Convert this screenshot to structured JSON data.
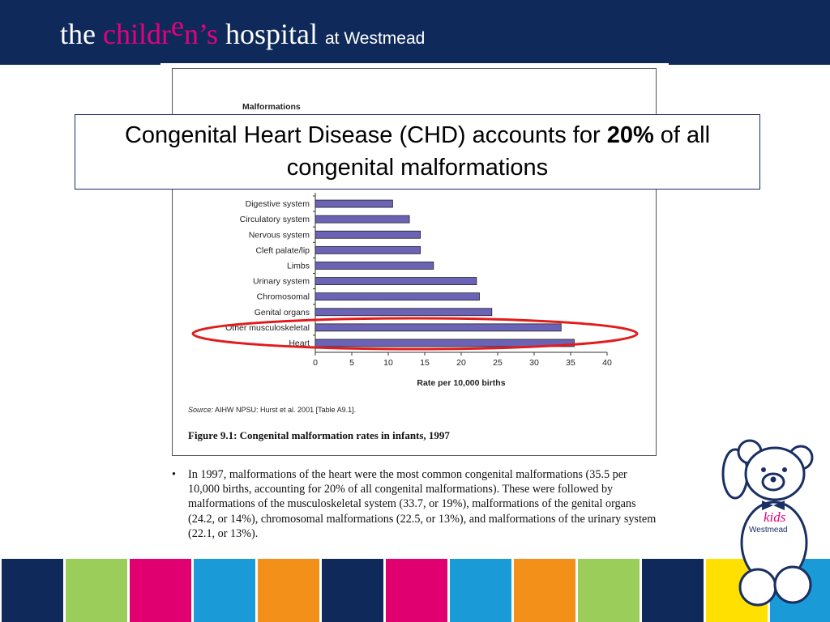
{
  "header": {
    "logo_part1": "the ",
    "logo_part2": "childr",
    "logo_part3": "e",
    "logo_part4": "n’s",
    "logo_part5": " hospital ",
    "logo_part6": "at Westmead"
  },
  "callout": {
    "text_before": "Congenital Heart Disease (CHD) accounts for ",
    "text_bold": "20%",
    "text_after": " of all congenital malformations"
  },
  "chart_data": {
    "type": "bar",
    "orientation": "horizontal",
    "title": "Malformations",
    "xlabel": "Rate per 10,000 births",
    "xlim": [
      0,
      40
    ],
    "xticks": [
      0,
      5,
      10,
      15,
      20,
      25,
      30,
      35,
      40
    ],
    "categories": [
      "Digestive system",
      "Circulatory system",
      "Nervous system",
      "Cleft palate/lip",
      "Limbs",
      "Urinary system",
      "Chromosomal",
      "Genital organs",
      "Other musculoskeletal",
      "Heart"
    ],
    "values": [
      10.6,
      12.9,
      14.4,
      14.4,
      16.2,
      22.1,
      22.5,
      24.2,
      33.7,
      35.5
    ],
    "bar_color": "#6b63b5"
  },
  "figure": {
    "source_label": "Source:",
    "source_text": " AIHW NPSU: Hurst et al. 2001 [Table A9.1].",
    "caption": "Figure 9.1: Congenital malformation rates in infants, 1997"
  },
  "bullet": {
    "symbol": "•",
    "text": "In 1997, malformations of the heart were the most common congenital malformations (35.5 per 10,000 births, accounting for 20% of all congenital malformations). These were followed by malformations of the musculoskeletal system (33.7, or 19%), malformations of the genital organs (24.2, or 14%), chromosomal malformations (22.5, or 13%), and malformations of the urinary system (22.1, or 13%)."
  },
  "mascot": {
    "label1": "kids",
    "label2": "Westmead"
  },
  "colors": {
    "header": "#0f2a5a",
    "pink": "#e6007e",
    "strip": [
      "#0f2a5a",
      "#9acd5a",
      "#e0006f",
      "#1a9bd7",
      "#f39019",
      "#0f2a5a",
      "#e0006f",
      "#1a9bd7",
      "#f39019",
      "#9acd5a",
      "#0f2a5a",
      "#ffe000",
      "#1a9bd7"
    ],
    "oval": "#e21b1b"
  }
}
